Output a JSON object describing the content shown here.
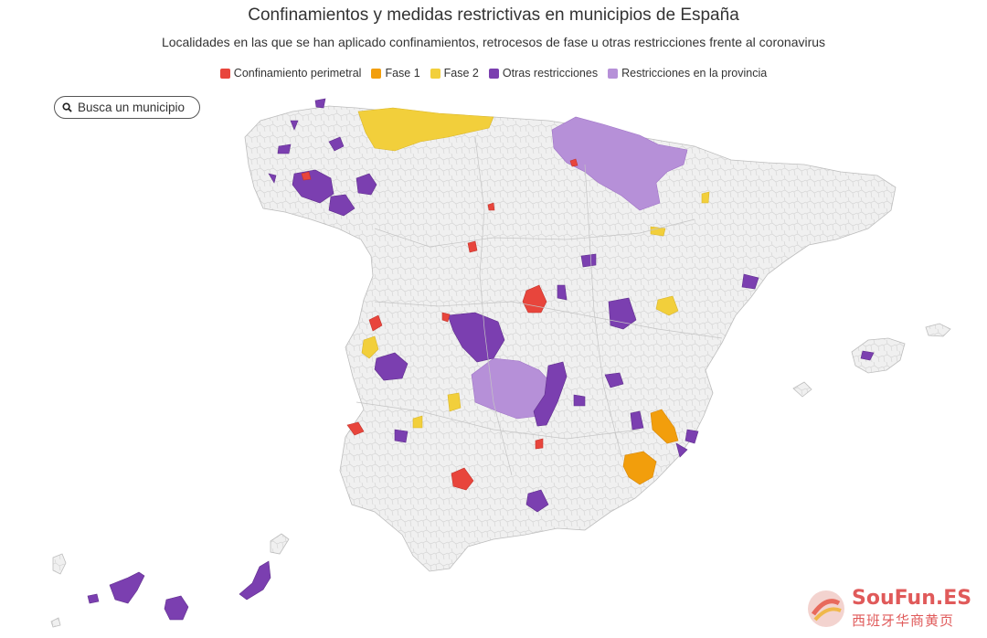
{
  "header": {
    "title": "Confinamientos y medidas restrictivas en municipios de España",
    "subtitle": "Localidades en las que se han aplicado confinamientos, retrocesos de fase u otras restricciones frente al coronavirus"
  },
  "legend": [
    {
      "label": "Confinamiento perimetral",
      "color": "#e8453c"
    },
    {
      "label": "Fase 1",
      "color": "#f29e0c"
    },
    {
      "label": "Fase 2",
      "color": "#f2cf3b"
    },
    {
      "label": "Otras restricciones",
      "color": "#7b3fb0"
    },
    {
      "label": "Restricciones en la provincia",
      "color": "#b690d8"
    }
  ],
  "search": {
    "placeholder": "Busca un municipio",
    "icon": "search-icon"
  },
  "map": {
    "base_color": "#f0f0f0",
    "border_color": "#d0d0d0"
  },
  "watermark": {
    "line1": "SouFun.ES",
    "line2": "西班牙华商黄页"
  }
}
